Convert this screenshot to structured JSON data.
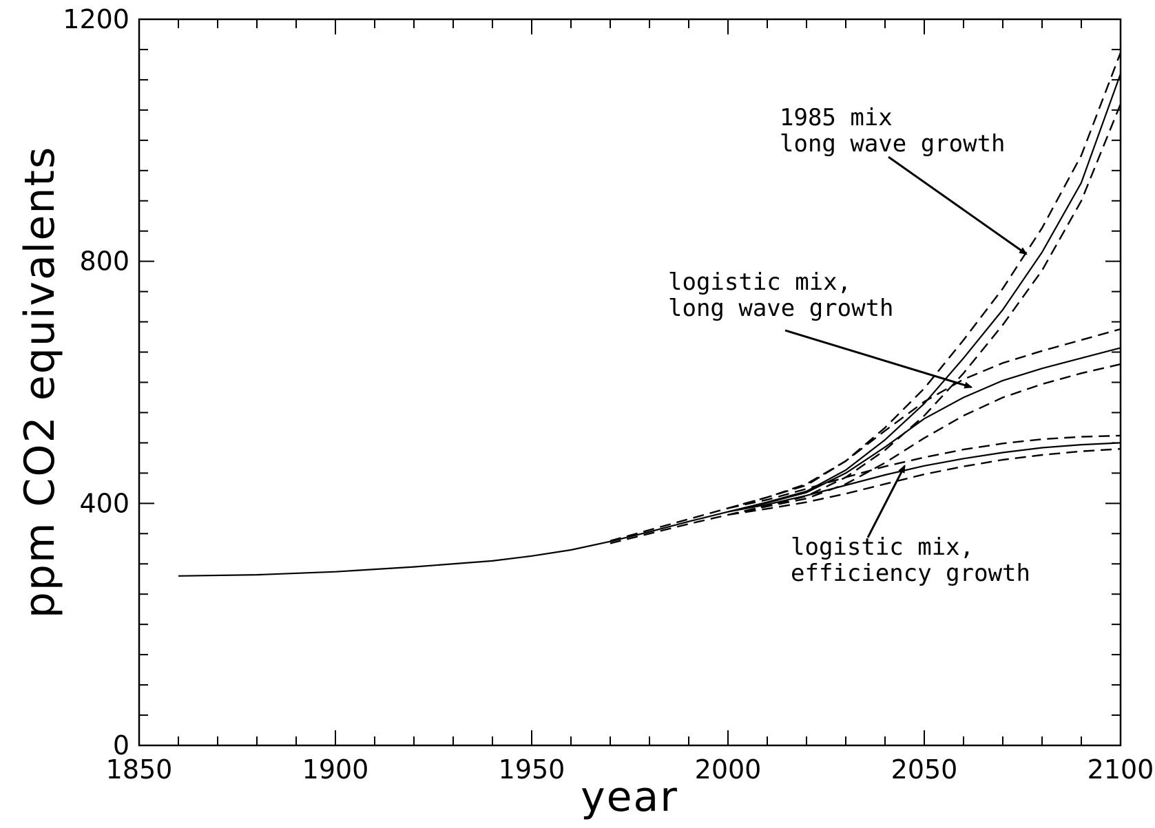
{
  "chart_data": {
    "type": "line",
    "title": "",
    "xlabel": "year",
    "ylabel": "ppm CO2 equivalents",
    "xlim": [
      1850,
      2100
    ],
    "ylim": [
      0,
      1200
    ],
    "x_ticks": [
      1850,
      1900,
      1950,
      2000,
      2050,
      2100
    ],
    "x_tick_labels": [
      "1850",
      "1900",
      "1950",
      "2000",
      "2050",
      "2100"
    ],
    "y_ticks": [
      0,
      400,
      800,
      1200
    ],
    "y_tick_labels": [
      "0",
      "400",
      "800",
      "1200"
    ],
    "x_minor_step": 10,
    "y_minor_step": 50,
    "grid": false,
    "legend": "none",
    "series": [
      {
        "style": "solid",
        "x": [
          1860,
          1880,
          1900,
          1920,
          1940,
          1950,
          1960,
          1970,
          1980,
          1990,
          2000,
          2010,
          2020,
          2030,
          2040,
          2050,
          2060,
          2070,
          2080,
          2090,
          2100
        ],
        "y": [
          280,
          282,
          287,
          295,
          305,
          313,
          323,
          337,
          353,
          370,
          386,
          402,
          420,
          455,
          505,
          565,
          640,
          720,
          815,
          930,
          1110
        ]
      },
      {
        "style": "dashed",
        "x": [
          1970,
          1980,
          1990,
          2000,
          2010,
          2020,
          2030,
          2040,
          2050,
          2060,
          2070,
          2080,
          2090,
          2100
        ],
        "y": [
          338,
          356,
          374,
          392,
          410,
          432,
          470,
          525,
          590,
          670,
          755,
          855,
          975,
          1145
        ]
      },
      {
        "style": "dashed",
        "x": [
          1970,
          1980,
          1990,
          2000,
          2010,
          2020,
          2030,
          2040,
          2050,
          2060,
          2070,
          2080,
          2090,
          2100
        ],
        "y": [
          334,
          350,
          366,
          381,
          396,
          412,
          443,
          488,
          545,
          615,
          695,
          785,
          900,
          1060
        ]
      },
      {
        "style": "solid",
        "x": [
          2000,
          2010,
          2020,
          2030,
          2040,
          2050,
          2060,
          2070,
          2080,
          2090,
          2100
        ],
        "y": [
          386,
          401,
          418,
          450,
          493,
          540,
          575,
          603,
          623,
          640,
          657
        ]
      },
      {
        "style": "dashed",
        "x": [
          2000,
          2010,
          2020,
          2030,
          2040,
          2050,
          2060,
          2070,
          2080,
          2090,
          2100
        ],
        "y": [
          392,
          410,
          430,
          470,
          520,
          568,
          605,
          632,
          652,
          670,
          688
        ]
      },
      {
        "style": "dashed",
        "x": [
          2000,
          2010,
          2020,
          2030,
          2040,
          2050,
          2060,
          2070,
          2080,
          2090,
          2100
        ],
        "y": [
          381,
          395,
          408,
          432,
          467,
          508,
          545,
          575,
          597,
          615,
          630
        ]
      },
      {
        "style": "solid",
        "x": [
          2000,
          2010,
          2020,
          2030,
          2040,
          2050,
          2060,
          2070,
          2080,
          2090,
          2100
        ],
        "y": [
          386,
          398,
          413,
          430,
          447,
          462,
          474,
          484,
          492,
          497,
          500
        ]
      },
      {
        "style": "dashed",
        "x": [
          2000,
          2010,
          2020,
          2030,
          2040,
          2050,
          2060,
          2070,
          2080,
          2090,
          2100
        ],
        "y": [
          392,
          406,
          424,
          443,
          461,
          476,
          489,
          499,
          506,
          510,
          512
        ]
      },
      {
        "style": "dashed",
        "x": [
          2000,
          2010,
          2020,
          2030,
          2040,
          2050,
          2060,
          2070,
          2080,
          2090,
          2100
        ],
        "y": [
          381,
          391,
          402,
          416,
          432,
          448,
          461,
          472,
          480,
          486,
          490
        ]
      }
    ],
    "annotations": [
      {
        "lines": [
          "1985 mix",
          "long wave growth"
        ],
        "arrow_to": [
          2076,
          812
        ]
      },
      {
        "lines": [
          "logistic mix,",
          "long wave growth"
        ],
        "arrow_to": [
          2062,
          592
        ]
      },
      {
        "lines": [
          "logistic mix,",
          "efficiency growth"
        ],
        "arrow_to": [
          2045,
          462
        ]
      }
    ]
  }
}
